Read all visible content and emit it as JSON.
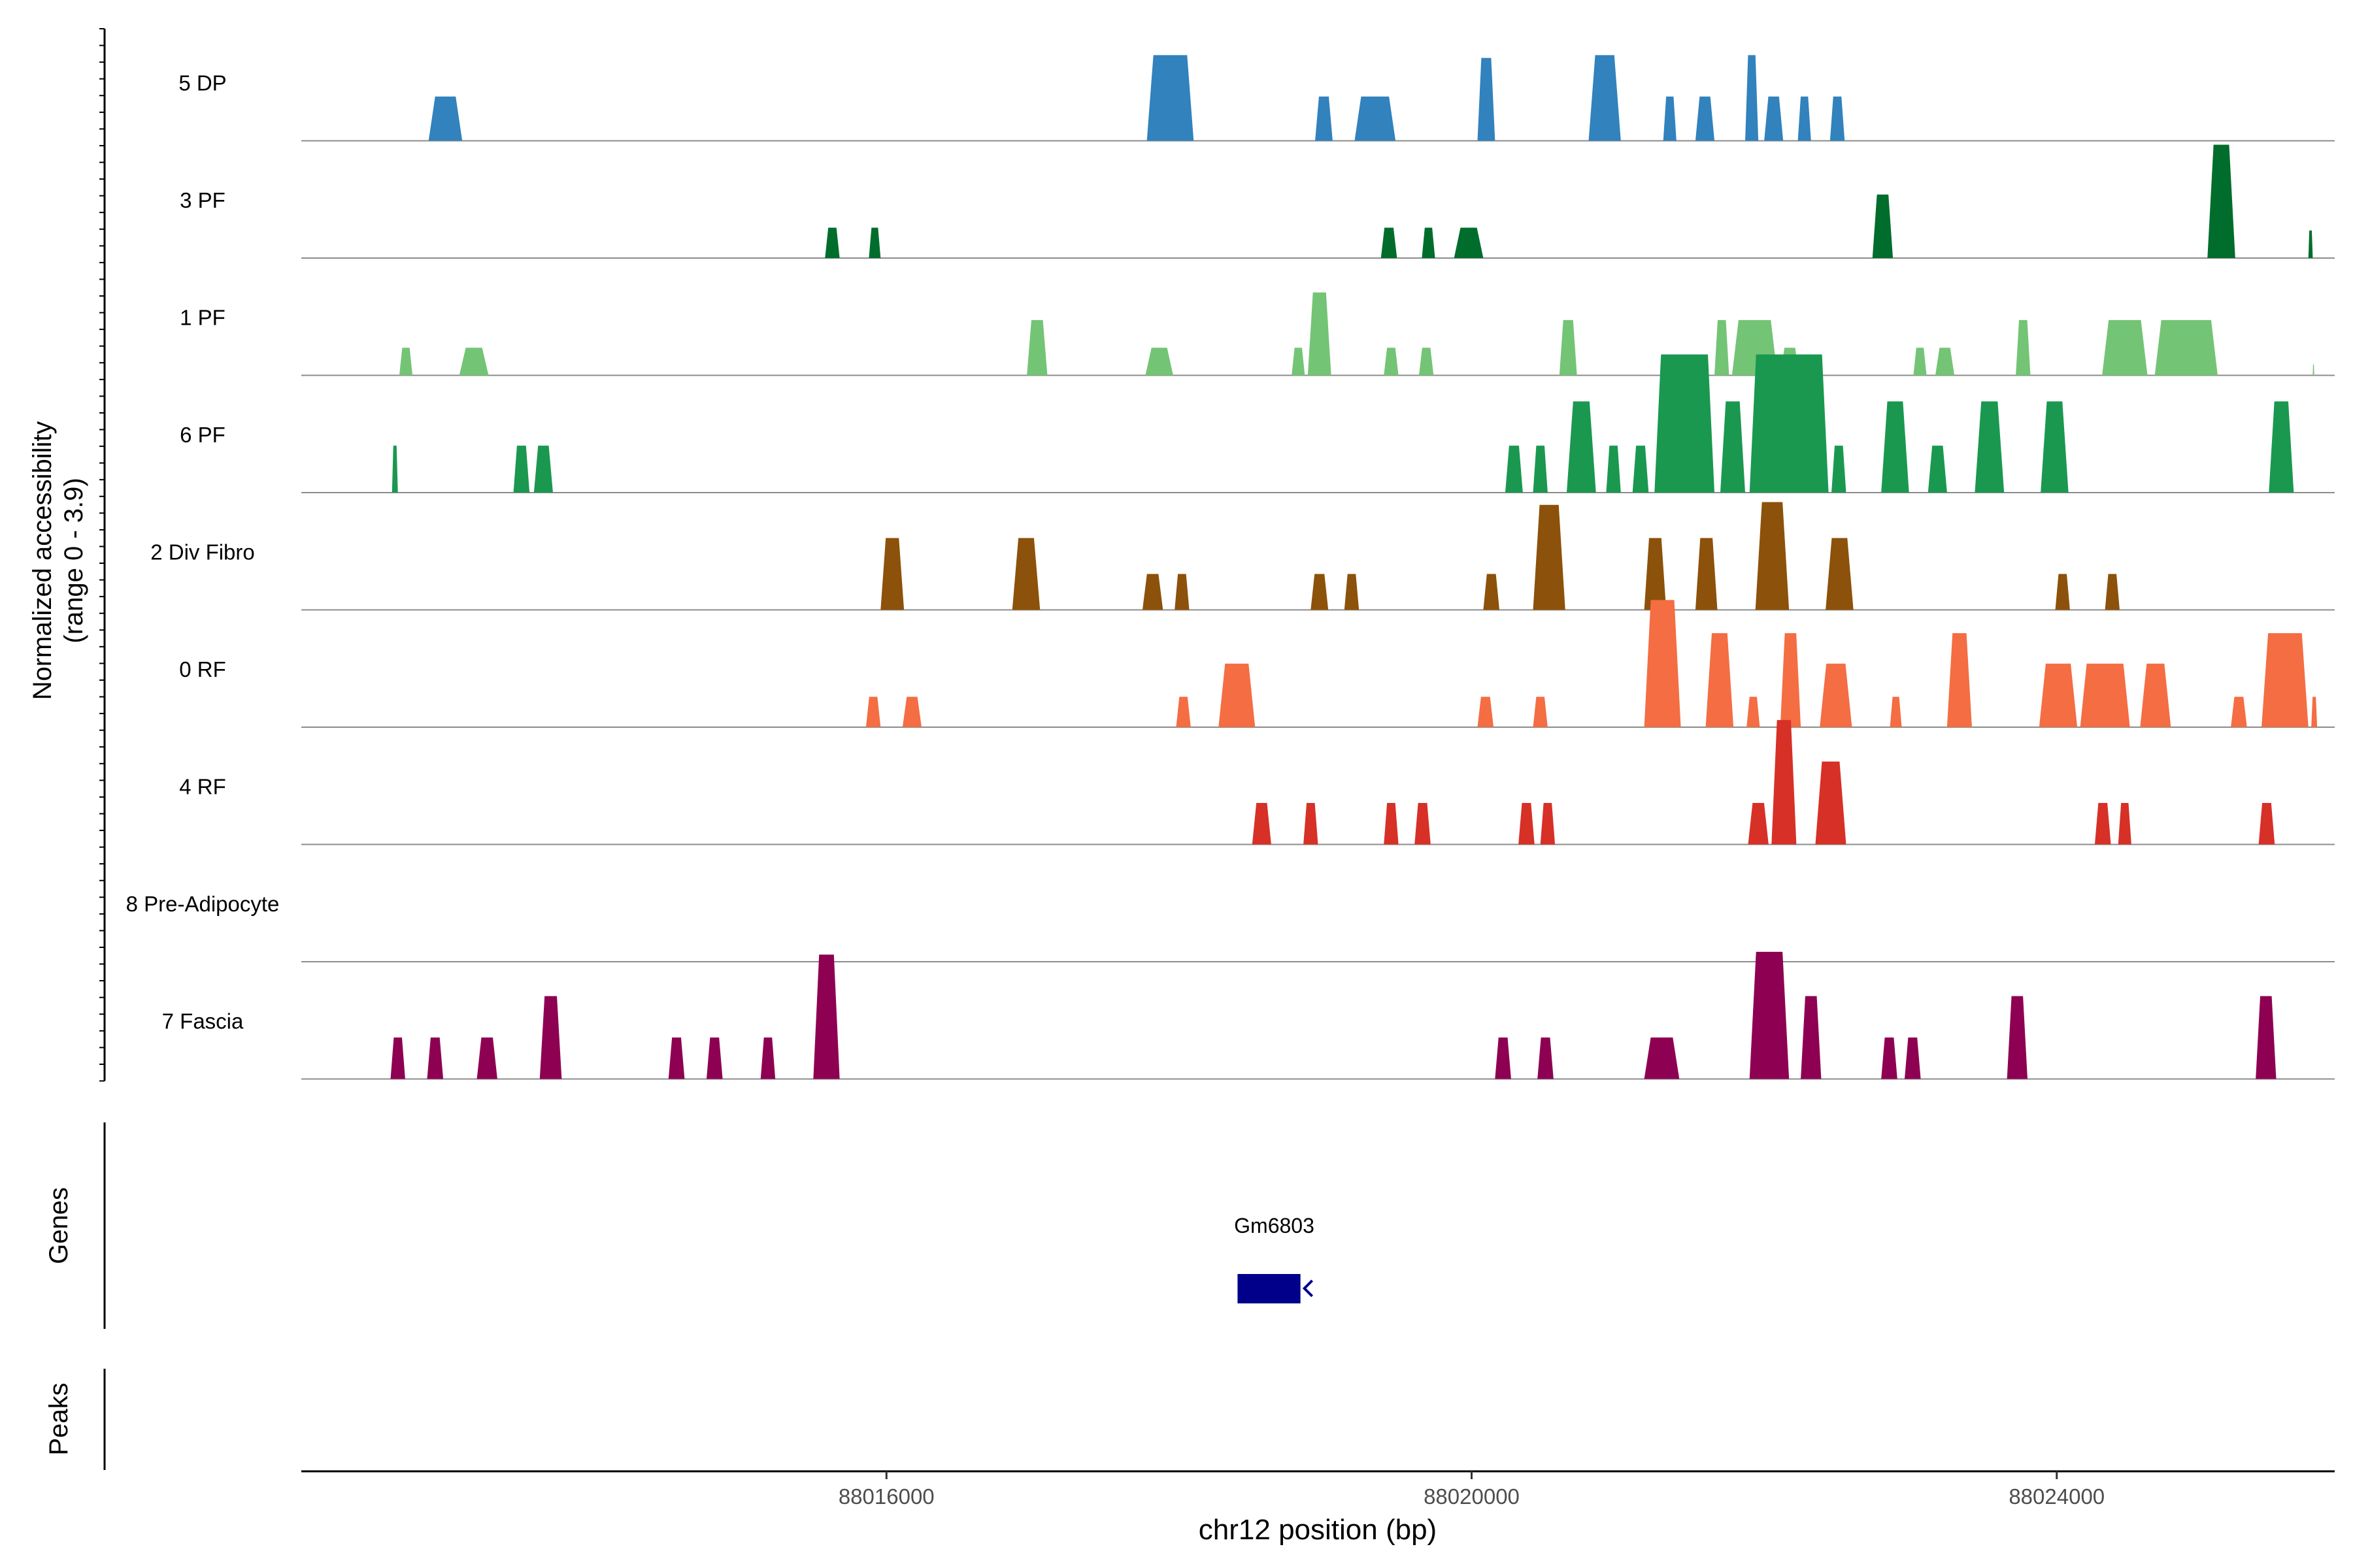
{
  "chart_data": {
    "type": "area",
    "subtype": "coverage-track",
    "ylabel_line1": "Normalized accessibility",
    "ylabel_line2": "(range 0 - 3.9)",
    "xlabel": "chr12 position (bp)",
    "xlim": [
      88012000,
      88025900
    ],
    "ylim": [
      0,
      3.9
    ],
    "x_ticks": [
      88016000,
      88020000,
      88024000
    ],
    "x_tick_labels": [
      "88016000",
      "88020000",
      "88024000"
    ],
    "genes_label": "Genes",
    "peaks_label": "Peaks",
    "gene": {
      "name": "Gm6803",
      "start": 88018400,
      "end": 88018830,
      "strand": "-",
      "color": "#00008B"
    },
    "series": [
      {
        "name": "5 DP",
        "color": "#3182BD",
        "peaks": [
          [
            88012870,
            88013100,
            1.6
          ],
          [
            88017780,
            88018100,
            3.1
          ],
          [
            88018930,
            88019050,
            1.6
          ],
          [
            88019200,
            88019480,
            1.6
          ],
          [
            88020040,
            88020160,
            3.0
          ],
          [
            88020800,
            88021020,
            3.1
          ],
          [
            88021310,
            88021400,
            1.6
          ],
          [
            88021530,
            88021660,
            1.6
          ],
          [
            88021870,
            88021960,
            3.1
          ],
          [
            88022000,
            88022130,
            1.6
          ],
          [
            88022230,
            88022320,
            1.6
          ],
          [
            88022450,
            88022550,
            1.6
          ]
        ]
      },
      {
        "name": "3 PF",
        "color": "#006D2C",
        "peaks": [
          [
            88015580,
            88015680,
            1.1
          ],
          [
            88015880,
            88015960,
            1.1
          ],
          [
            88019380,
            88019490,
            1.1
          ],
          [
            88019660,
            88019750,
            1.1
          ],
          [
            88019880,
            88020080,
            1.1
          ],
          [
            88022740,
            88022880,
            2.3
          ],
          [
            88025030,
            88025220,
            4.1
          ],
          [
            88025720,
            88025750,
            1.0
          ]
        ]
      },
      {
        "name": "1 PF",
        "color": "#74C476",
        "peaks": [
          [
            88012670,
            88012760,
            1.0
          ],
          [
            88013080,
            88013280,
            1.0
          ],
          [
            88016960,
            88017100,
            2.0
          ],
          [
            88017770,
            88017960,
            1.0
          ],
          [
            88018770,
            88018860,
            1.0
          ],
          [
            88018880,
            88019040,
            3.0
          ],
          [
            88019400,
            88019500,
            1.0
          ],
          [
            88019640,
            88019740,
            1.0
          ],
          [
            88020600,
            88020720,
            2.0
          ],
          [
            88021660,
            88021760,
            2.0
          ],
          [
            88021780,
            88022090,
            2.0
          ],
          [
            88022110,
            88022240,
            1.0
          ],
          [
            88023020,
            88023110,
            1.0
          ],
          [
            88023170,
            88023300,
            1.0
          ],
          [
            88023720,
            88023820,
            2.0
          ],
          [
            88024310,
            88024620,
            2.0
          ],
          [
            88024670,
            88025100,
            2.0
          ],
          [
            88025750,
            88025760,
            0.4
          ]
        ]
      },
      {
        "name": "6 PF",
        "color": "#1A9850",
        "peaks": [
          [
            88012620,
            88012660,
            1.7
          ],
          [
            88013450,
            88013560,
            1.7
          ],
          [
            88013590,
            88013720,
            1.7
          ],
          [
            88020230,
            88020350,
            1.7
          ],
          [
            88020420,
            88020520,
            1.7
          ],
          [
            88020650,
            88020850,
            3.3
          ],
          [
            88020920,
            88021020,
            1.7
          ],
          [
            88021100,
            88021210,
            1.7
          ],
          [
            88021250,
            88021660,
            5.0
          ],
          [
            88021700,
            88021870,
            3.3
          ],
          [
            88021900,
            88022440,
            5.0
          ],
          [
            88022460,
            88022560,
            1.7
          ],
          [
            88022800,
            88022990,
            3.3
          ],
          [
            88023120,
            88023250,
            1.7
          ],
          [
            88023440,
            88023640,
            3.3
          ],
          [
            88023890,
            88024080,
            3.3
          ],
          [
            88025450,
            88025620,
            3.3
          ]
        ]
      },
      {
        "name": "2 Div Fibro",
        "color": "#8C510A",
        "peaks": [
          [
            88015960,
            88016120,
            2.6
          ],
          [
            88016860,
            88017050,
            2.6
          ],
          [
            88017750,
            88017890,
            1.3
          ],
          [
            88017970,
            88018070,
            1.3
          ],
          [
            88018900,
            88019020,
            1.3
          ],
          [
            88019130,
            88019230,
            1.3
          ],
          [
            88020080,
            88020190,
            1.3
          ],
          [
            88020420,
            88020640,
            3.8
          ],
          [
            88021180,
            88021330,
            2.6
          ],
          [
            88021530,
            88021680,
            2.6
          ],
          [
            88021940,
            88022170,
            3.9
          ],
          [
            88022420,
            88022610,
            2.6
          ],
          [
            88023990,
            88024090,
            1.3
          ],
          [
            88024330,
            88024430,
            1.3
          ]
        ]
      },
      {
        "name": "0 RF",
        "color": "#F46D43",
        "peaks": [
          [
            88015860,
            88015960,
            1.1
          ],
          [
            88016110,
            88016240,
            1.1
          ],
          [
            88017980,
            88018080,
            1.1
          ],
          [
            88018270,
            88018520,
            2.3
          ],
          [
            88020040,
            88020150,
            1.1
          ],
          [
            88020420,
            88020520,
            1.1
          ],
          [
            88021180,
            88021430,
            4.6
          ],
          [
            88021600,
            88021790,
            3.4
          ],
          [
            88021880,
            88021970,
            1.1
          ],
          [
            88022110,
            88022250,
            3.4
          ],
          [
            88022380,
            88022600,
            2.3
          ],
          [
            88022860,
            88022940,
            1.1
          ],
          [
            88023250,
            88023420,
            3.4
          ],
          [
            88023880,
            88024140,
            2.3
          ],
          [
            88024160,
            88024500,
            2.3
          ],
          [
            88024570,
            88024780,
            2.3
          ],
          [
            88025190,
            88025300,
            1.1
          ],
          [
            88025400,
            88025720,
            3.4
          ],
          [
            88025740,
            88025780,
            1.1
          ]
        ]
      },
      {
        "name": "4 RF",
        "color": "#D73027",
        "peaks": [
          [
            88018500,
            88018630,
            1.5
          ],
          [
            88018850,
            88018950,
            1.5
          ],
          [
            88019400,
            88019500,
            1.5
          ],
          [
            88019610,
            88019720,
            1.5
          ],
          [
            88020320,
            88020430,
            1.5
          ],
          [
            88020470,
            88020570,
            1.5
          ],
          [
            88021890,
            88022030,
            1.5
          ],
          [
            88022050,
            88022220,
            4.5
          ],
          [
            88022350,
            88022560,
            3.0
          ],
          [
            88024260,
            88024370,
            1.5
          ],
          [
            88024420,
            88024510,
            1.5
          ],
          [
            88025380,
            88025490,
            1.5
          ]
        ]
      },
      {
        "name": "8 Pre-Adipocyte",
        "color": "#E7298A",
        "peaks": []
      },
      {
        "name": "7 Fascia",
        "color": "#8E0152",
        "peaks": [
          [
            88012610,
            88012710,
            1.5
          ],
          [
            88012860,
            88012970,
            1.5
          ],
          [
            88013200,
            88013340,
            1.5
          ],
          [
            88013630,
            88013780,
            3.0
          ],
          [
            88014510,
            88014620,
            1.5
          ],
          [
            88014770,
            88014880,
            1.5
          ],
          [
            88015140,
            88015240,
            1.5
          ],
          [
            88015500,
            88015680,
            4.5
          ],
          [
            88020160,
            88020270,
            1.5
          ],
          [
            88020450,
            88020560,
            1.5
          ],
          [
            88021180,
            88021420,
            1.5
          ],
          [
            88021900,
            88022170,
            4.6
          ],
          [
            88022250,
            88022390,
            3.0
          ],
          [
            88022800,
            88022910,
            1.5
          ],
          [
            88022960,
            88023070,
            1.5
          ],
          [
            88023660,
            88023800,
            3.0
          ],
          [
            88025360,
            88025500,
            3.0
          ]
        ]
      }
    ]
  }
}
